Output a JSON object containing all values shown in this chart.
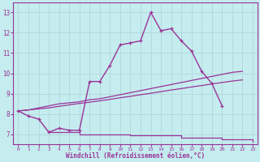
{
  "xlabel": "Windchill (Refroidissement éolien,°C)",
  "background_color": "#c5ecee",
  "grid_color": "#b0d8da",
  "line_color": "#993399",
  "x_hours": [
    0,
    1,
    2,
    3,
    4,
    5,
    6,
    7,
    8,
    9,
    10,
    11,
    12,
    13,
    14,
    15,
    16,
    17,
    18,
    19,
    20,
    21,
    22,
    23
  ],
  "temp_line": [
    8.15,
    7.9,
    7.75,
    7.1,
    7.3,
    7.2,
    7.2,
    9.6,
    9.6,
    10.4,
    11.4,
    11.5,
    11.6,
    13.0,
    12.1,
    12.2,
    11.6,
    11.1,
    10.1,
    9.5,
    8.4,
    null,
    null,
    null
  ],
  "diag_line1": [
    8.15,
    8.2,
    8.3,
    8.4,
    8.5,
    8.55,
    8.6,
    8.7,
    8.75,
    8.85,
    8.95,
    9.05,
    9.15,
    9.25,
    9.35,
    9.45,
    9.55,
    9.65,
    9.75,
    9.85,
    9.95,
    10.05,
    10.1,
    null
  ],
  "diag_line2": [
    8.15,
    8.2,
    8.25,
    8.3,
    8.38,
    8.45,
    8.52,
    8.58,
    8.65,
    8.72,
    8.8,
    8.87,
    8.95,
    9.02,
    9.1,
    9.18,
    9.25,
    9.33,
    9.4,
    9.48,
    9.55,
    9.62,
    9.68,
    null
  ],
  "flat_line": [
    null,
    null,
    null,
    7.1,
    7.1,
    7.1,
    7.0,
    7.0,
    7.0,
    7.0,
    7.0,
    6.95,
    6.95,
    6.95,
    6.95,
    6.95,
    6.85,
    6.85,
    6.85,
    6.85,
    6.75,
    6.75,
    6.75,
    6.65
  ],
  "ylim": [
    6.5,
    13.5
  ],
  "xlim": [
    -0.5,
    23.5
  ],
  "yticks": [
    7,
    8,
    9,
    10,
    11,
    12,
    13
  ],
  "xticks": [
    0,
    1,
    2,
    3,
    4,
    5,
    6,
    7,
    8,
    9,
    10,
    11,
    12,
    13,
    14,
    15,
    16,
    17,
    18,
    19,
    20,
    21,
    22,
    23
  ]
}
